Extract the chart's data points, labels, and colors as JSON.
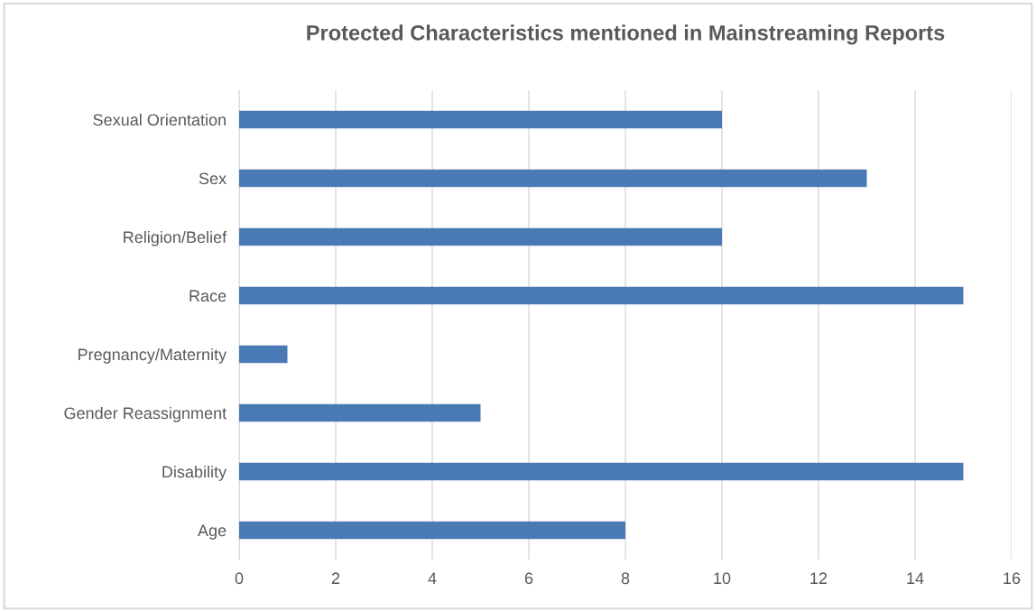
{
  "chart_data": {
    "type": "bar",
    "orientation": "horizontal",
    "title": "Protected Characteristics mentioned in Mainstreaming Reports",
    "categories": [
      "Sexual Orientation",
      "Sex",
      "Religion/Belief",
      "Race",
      "Pregnancy/Maternity",
      "Gender Reassignment",
      "Disability",
      "Age"
    ],
    "values": [
      10,
      13,
      10,
      15,
      1,
      5,
      15,
      8
    ],
    "color": "#4a7ab5",
    "xlim": [
      0,
      16
    ],
    "xticks": [
      0,
      2,
      4,
      6,
      8,
      10,
      12,
      14,
      16
    ],
    "grid": "x"
  }
}
